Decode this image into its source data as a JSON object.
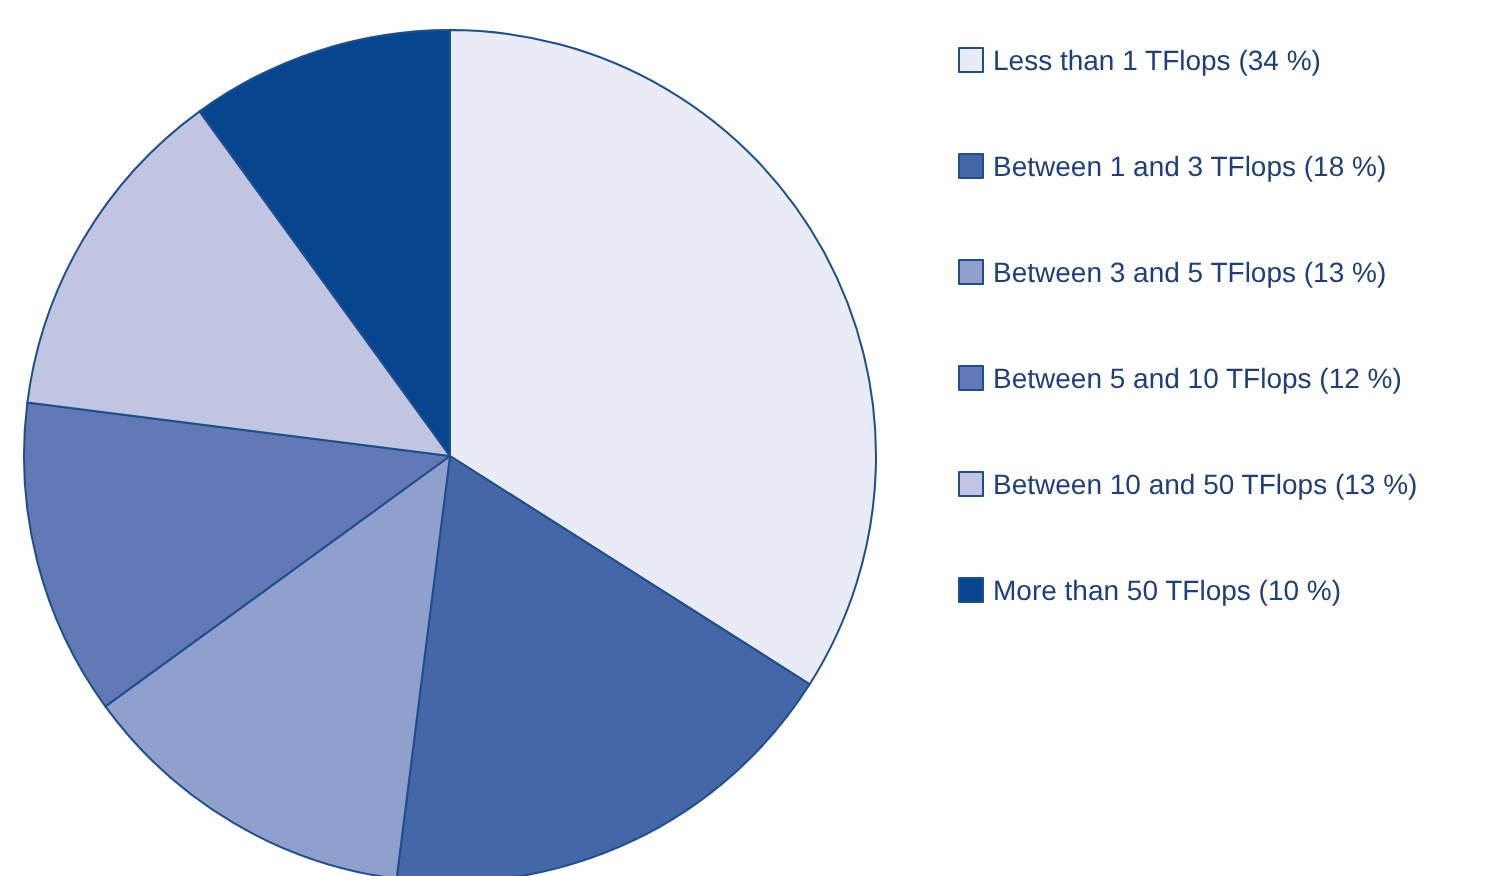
{
  "chart_data": {
    "type": "pie",
    "categories": [
      "Less than 1 TFlops (34 %)",
      "Between 1 and 3 TFlops (18 %)",
      "Between 3 and 5 TFlops (13 %)",
      "Between 5 and 10 TFlops (12 %)",
      "Between 10 and 50 TFlops (13 %)",
      "More than 50 TFlops (10 %)"
    ],
    "values": [
      34,
      18,
      13,
      12,
      13,
      10
    ],
    "colors": [
      "#e9ecf6",
      "#4467a8",
      "#8fa0cc",
      "#6179b4",
      "#c0c6e2",
      "#05468f"
    ],
    "legend": "right"
  }
}
